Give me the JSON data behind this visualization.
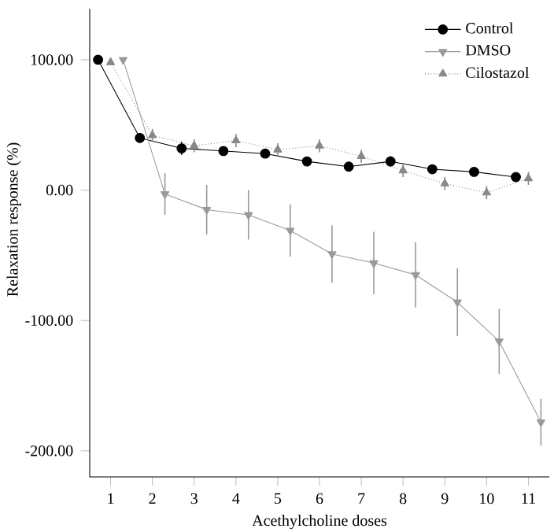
{
  "chart_data": {
    "type": "line",
    "xlabel": "Acethylcholine doses",
    "ylabel": "Relaxation response (%)",
    "xlim": [
      0.5,
      11.5
    ],
    "xticks": [
      1,
      2,
      3,
      4,
      5,
      6,
      7,
      8,
      9,
      10,
      11
    ],
    "ylim": [
      -220,
      139
    ],
    "yticks": [
      {
        "value": -200,
        "label": "-200.00"
      },
      {
        "value": -100,
        "label": "-100.00"
      },
      {
        "value": 0,
        "label": "0.00"
      },
      {
        "value": 100,
        "label": "100.00"
      }
    ],
    "legend": "top right",
    "grid": false,
    "series": [
      {
        "name": "Control",
        "color": "#000000",
        "marker": "circle",
        "line_style": "solid",
        "x": [
          0.7,
          1.7,
          2.7,
          3.7,
          4.7,
          5.7,
          6.7,
          7.7,
          8.7,
          9.7,
          10.7
        ],
        "values": [
          100,
          40,
          32,
          30,
          28,
          22,
          18,
          22,
          16,
          14,
          10
        ],
        "errors": [
          null,
          null,
          5,
          null,
          null,
          null,
          null,
          4,
          null,
          null,
          null
        ]
      },
      {
        "name": "DMSO",
        "color": "#9a9a9a",
        "marker": "triangle_down",
        "line_style": "solid",
        "x": [
          1.3,
          2.3,
          3.3,
          4.3,
          5.3,
          6.3,
          7.3,
          8.3,
          9.3,
          10.3,
          11.3
        ],
        "values": [
          100,
          -3,
          -15,
          -19,
          -31,
          -49,
          -56,
          -65,
          -86,
          -116,
          -178
        ],
        "errors": [
          null,
          16,
          19,
          19,
          20,
          22,
          24,
          25,
          26,
          25,
          18
        ]
      },
      {
        "name": "Cilostazol",
        "color": "#888888",
        "marker": "triangle",
        "line_style": "dotted",
        "x": [
          1,
          2,
          3,
          4,
          5,
          6,
          7,
          8,
          9,
          10,
          11
        ],
        "values": [
          98,
          42,
          34,
          38,
          31,
          34,
          26,
          15,
          5,
          -2,
          9
        ],
        "errors": [
          null,
          5,
          5,
          5,
          5,
          5,
          5,
          5,
          5,
          5,
          5
        ]
      }
    ]
  }
}
